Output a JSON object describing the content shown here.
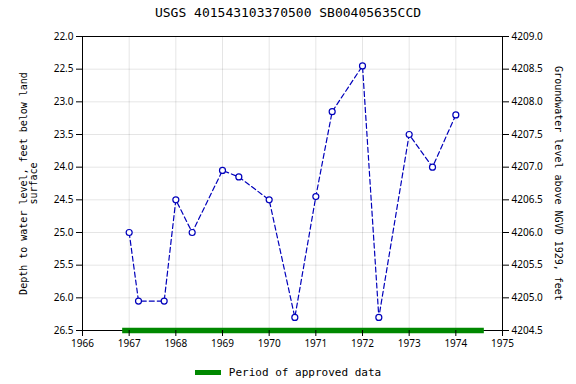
{
  "chart_data": {
    "type": "line",
    "title": "USGS 401543103370500 SB00405635CCD",
    "ylabel": "Depth to water level, feet below land\nsurface",
    "y2label": "Groundwater level above NGVD 1929, feet",
    "xlim": [
      1966,
      1975
    ],
    "xticks": [
      1966,
      1967,
      1968,
      1969,
      1970,
      1971,
      1972,
      1973,
      1974,
      1975
    ],
    "ylim": [
      26.5,
      22.0
    ],
    "yticks": [
      {
        "value": 22.0,
        "label": "22.0"
      },
      22.5,
      {
        "value": 23.0,
        "label": "23.0"
      },
      23.5,
      {
        "value": 24.0,
        "label": "24.0"
      },
      24.5,
      {
        "value": 25.0,
        "label": "25.0"
      },
      25.5,
      {
        "value": 26.0,
        "label": "26.0"
      },
      26.5
    ],
    "y2lim": [
      4204.5,
      4209.0
    ],
    "y2ticks": [
      4204.5,
      {
        "value": 4205.0,
        "label": "4205.0"
      },
      4205.5,
      {
        "value": 4206.0,
        "label": "4206.0"
      },
      4206.5,
      {
        "value": 4207.0,
        "label": "4207.0"
      },
      4207.5,
      {
        "value": 4208.0,
        "label": "4208.0"
      },
      4208.5,
      {
        "value": 4209.0,
        "label": "4209.0"
      }
    ],
    "grid": true,
    "legend": "bottom",
    "series": [
      {
        "type": "line",
        "color": "#0000BB",
        "line_style": "dashed",
        "marker": "open_circle",
        "x": [
          1967.0,
          1967.2,
          1967.75,
          1968.0,
          1968.35,
          1969.0,
          1969.35,
          1970.0,
          1970.55,
          1971.0,
          1971.35,
          1972.0,
          1972.35,
          1973.0,
          1973.5,
          1974.0
        ],
        "values": [
          25.0,
          26.05,
          26.05,
          24.5,
          25.0,
          24.05,
          24.15,
          24.5,
          26.3,
          24.45,
          23.15,
          22.45,
          26.3,
          23.5,
          24.0,
          23.2
        ]
      },
      {
        "type": "span",
        "name": "Period of approved data",
        "color": "#008800",
        "line_style": "solid",
        "x": [
          1966.85,
          1974.6
        ],
        "values": [
          26.5,
          26.5
        ]
      }
    ]
  }
}
